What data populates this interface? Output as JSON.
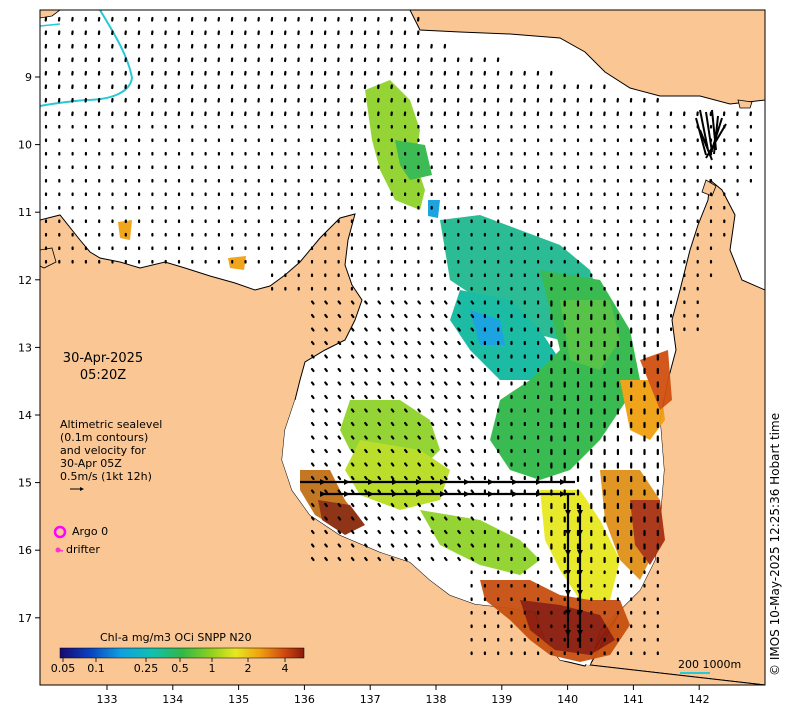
{
  "map": {
    "lon_ticks": [
      "133",
      "134",
      "135",
      "136",
      "137",
      "138",
      "139",
      "140",
      "141",
      "142"
    ],
    "lat_ticks": [
      "9",
      "10",
      "11",
      "12",
      "13",
      "14",
      "15",
      "16",
      "17"
    ],
    "date_line1": "30-Apr-2025",
    "date_line2": "05:20Z",
    "altimetry_lines": [
      "Altimetric sealevel",
      "(0.1m contours)",
      "and velocity for",
      "30-Apr 05Z",
      "0.5m/s (1kt 12h)"
    ],
    "legend_argo": "Argo 0",
    "legend_drifter": "drifter",
    "colorbar_title": "Chl-a mg/m3 OCi SNPP N20",
    "colorbar_ticks": [
      "0.05",
      "0.1",
      "0.25",
      "0.5",
      "1",
      "2",
      "4"
    ],
    "scale_label": "200  1000m",
    "credit": "© IMOS 10-May-2025 12:25:36 Hobart time",
    "colors": {
      "land": "#fac794",
      "ocean": "#ffffff",
      "argo": "#ff00ff",
      "drifter": "#ff33cc",
      "isobath": "#28c8d6"
    }
  }
}
